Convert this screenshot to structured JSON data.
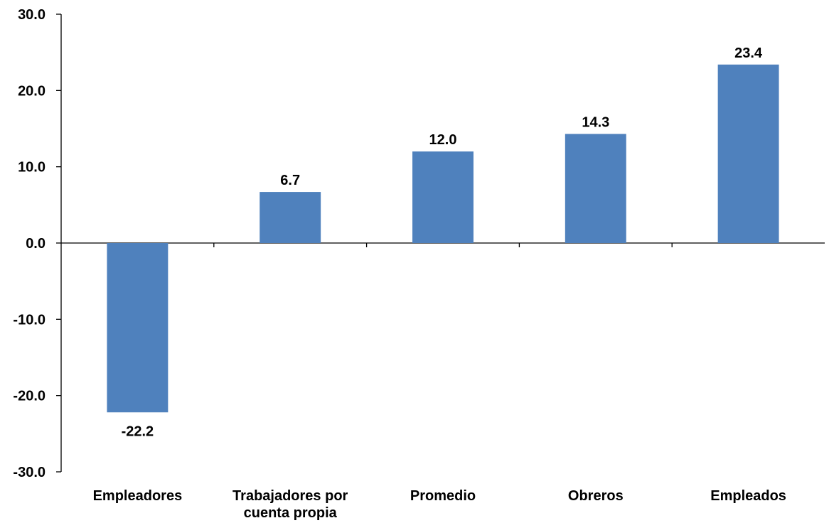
{
  "chart_data": {
    "type": "bar",
    "categories": [
      [
        "Empleadores"
      ],
      [
        "Trabajadores por",
        "cuenta propia"
      ],
      [
        "Promedio"
      ],
      [
        "Obreros"
      ],
      [
        "Empleados"
      ]
    ],
    "values": [
      -22.2,
      6.7,
      12.0,
      14.3,
      23.4
    ],
    "value_labels": [
      "-22.2",
      "6.7",
      "12.0",
      "14.3",
      "23.4"
    ],
    "title": "",
    "xlabel": "",
    "ylabel": "",
    "ylim": [
      -30,
      30
    ],
    "yticks": [
      30,
      20,
      10,
      0,
      -10,
      -20,
      -30
    ],
    "ytick_labels": [
      "30.0",
      "20.0",
      "10.0",
      "0.0",
      "-10.0",
      "-20.0",
      "-30.0"
    ],
    "bar_color": "#4F81BD",
    "grid": false,
    "legend": "none"
  }
}
